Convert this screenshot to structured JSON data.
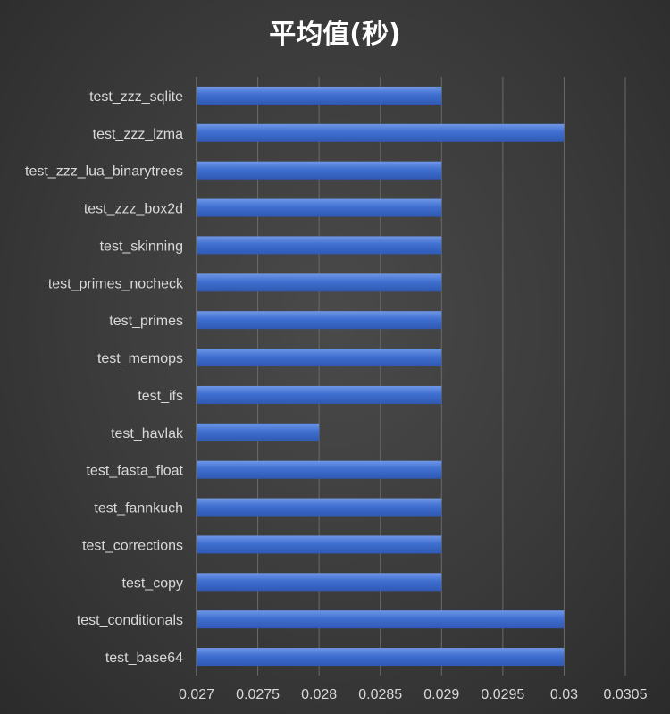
{
  "chart_data": {
    "type": "bar",
    "orientation": "horizontal",
    "title": "平均值(秒)",
    "categories": [
      "test_zzz_sqlite",
      "test_zzz_lzma",
      "test_zzz_lua_binarytrees",
      "test_zzz_box2d",
      "test_skinning",
      "test_primes_nocheck",
      "test_primes",
      "test_memops",
      "test_ifs",
      "test_havlak",
      "test_fasta_float",
      "test_fannkuch",
      "test_corrections",
      "test_copy",
      "test_conditionals",
      "test_base64"
    ],
    "values": [
      0.029,
      0.03,
      0.029,
      0.029,
      0.029,
      0.029,
      0.029,
      0.029,
      0.029,
      0.028,
      0.029,
      0.029,
      0.029,
      0.029,
      0.03,
      0.03
    ],
    "xlim": [
      0.027,
      0.0305
    ],
    "xticks": [
      "0.027",
      "0.0275",
      "0.028",
      "0.0285",
      "0.029",
      "0.0295",
      "0.03",
      "0.0305"
    ],
    "grid": true,
    "bar_color": "#4472c4"
  }
}
